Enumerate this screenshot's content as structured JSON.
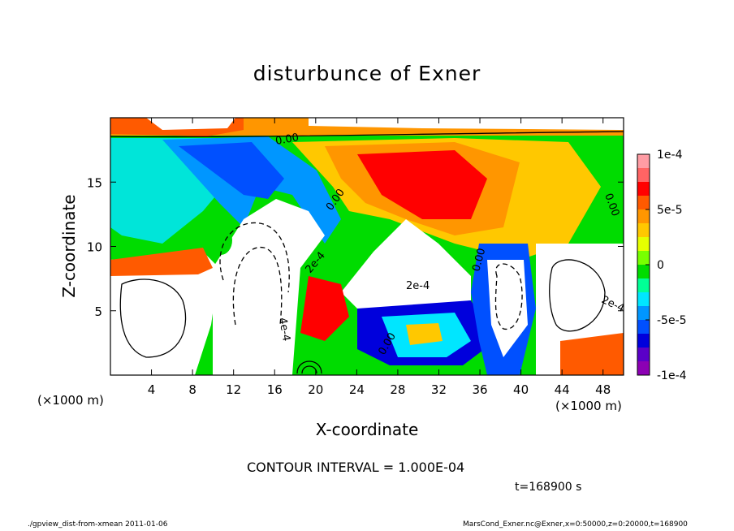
{
  "chart_data": {
    "type": "heatmap",
    "title": "disturbunce of Exner",
    "xlabel": "X-coordinate",
    "ylabel": "Z-coordinate",
    "x_unit": "(×1000 m)",
    "y_unit": "(×1000 m)",
    "xlim": [
      0,
      50
    ],
    "ylim": [
      0,
      20
    ],
    "x_ticks": [
      4,
      8,
      12,
      16,
      20,
      24,
      28,
      32,
      36,
      40,
      44,
      48
    ],
    "y_ticks": [
      5,
      10,
      15
    ],
    "colorbar": {
      "range": [
        -0.0001,
        0.0001
      ],
      "tick_labels": [
        "1e-4",
        "5e-5",
        "0",
        "-5e-5",
        "-1e-4"
      ],
      "tick_values": [
        0.0001,
        5e-05,
        0,
        -5e-05,
        -0.0001
      ],
      "colors": [
        "#ff9ca4",
        "#ff6464",
        "#ff0000",
        "#ff5a00",
        "#ff9600",
        "#ffc800",
        "#e6ff00",
        "#78ff00",
        "#00dc00",
        "#00ff96",
        "#00e6ff",
        "#0096ff",
        "#0050ff",
        "#0000dc",
        "#5a00c8",
        "#8c00b4"
      ]
    },
    "contour_interval": "CONTOUR INTERVAL = 1.000E-04",
    "contour_labels": [
      "0.00",
      "0.00",
      "0.00",
      "0.00",
      "0.00",
      "2e-4",
      "2e-4",
      "2e-4",
      "4e-4"
    ],
    "time": "t=168900 s"
  },
  "footer": {
    "left": "./gpview_dist-from-xmean  2011-01-06",
    "right": "MarsCond_Exner.nc@Exner,x=0:50000,z=0:20000,t=168900"
  }
}
